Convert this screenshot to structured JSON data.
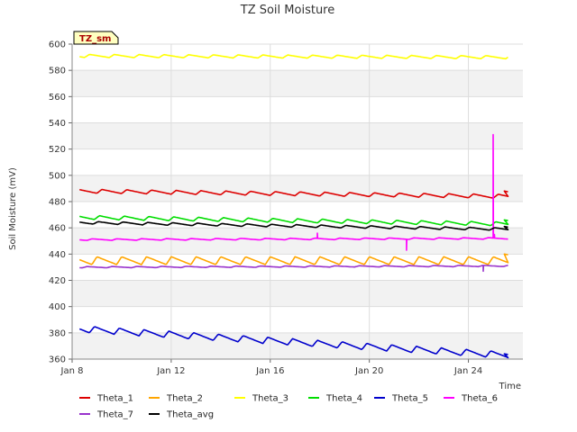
{
  "chart_data": {
    "type": "line",
    "title": "TZ Soil Moisture",
    "xlabel": "Time",
    "ylabel": "Soil Moisture (mV)",
    "badge": "TZ_sm",
    "xlim": [
      8,
      26.2
    ],
    "ylim": [
      360,
      600
    ],
    "x_ticks": [
      {
        "value": 8,
        "label": "Jan 8"
      },
      {
        "value": 12,
        "label": "Jan 12"
      },
      {
        "value": 16,
        "label": "Jan 16"
      },
      {
        "value": 20,
        "label": "Jan 20"
      },
      {
        "value": 24,
        "label": "Jan 24"
      }
    ],
    "y_ticks": [
      360,
      380,
      400,
      420,
      440,
      460,
      480,
      500,
      520,
      540,
      560,
      580,
      600
    ],
    "x_start": 8.3,
    "x_end": 25.6,
    "series": [
      {
        "name": "Theta_1",
        "color": "#dd0000",
        "base_start": 488,
        "base_end": 484,
        "amplitude": 1.5,
        "phase": 0.0,
        "final_value": 488
      },
      {
        "name": "Theta_2",
        "color": "#ffa500",
        "base_start": 435,
        "base_end": 435,
        "amplitude": 3,
        "phase": 0.2,
        "final_value": 440
      },
      {
        "name": "Theta_3",
        "color": "#ffff00",
        "base_start": 591,
        "base_end": 590,
        "amplitude": 1.2,
        "phase": 0.5
      },
      {
        "name": "Theta_4",
        "color": "#00dd00",
        "base_start": 468,
        "base_end": 463,
        "amplitude": 1.5,
        "phase": 0.1,
        "final_value": 466
      },
      {
        "name": "Theta_5",
        "color": "#0000cc",
        "base_start": 383,
        "base_end": 363,
        "amplitude": 2.5,
        "phase": 0.3,
        "final_value": 364
      },
      {
        "name": "Theta_6",
        "color": "#ff00ff",
        "base_start": 451,
        "base_end": 452,
        "amplitude": 0.6,
        "phase": 0.4,
        "spikes": [
          {
            "x": 17.9,
            "y": 456
          },
          {
            "x": 21.5,
            "y": 443
          },
          {
            "x": 25.0,
            "y": 531
          },
          {
            "x": 25.05,
            "y": 455
          }
        ]
      },
      {
        "name": "Theta_7",
        "color": "#9933cc",
        "base_start": 430,
        "base_end": 431,
        "amplitude": 0.5,
        "phase": 0.6,
        "spikes": [
          {
            "x": 24.6,
            "y": 427
          }
        ]
      },
      {
        "name": "Theta_avg",
        "color": "#000000",
        "base_start": 464,
        "base_end": 459,
        "amplitude": 1.0,
        "phase": 0.15,
        "final_value": 461
      }
    ]
  }
}
